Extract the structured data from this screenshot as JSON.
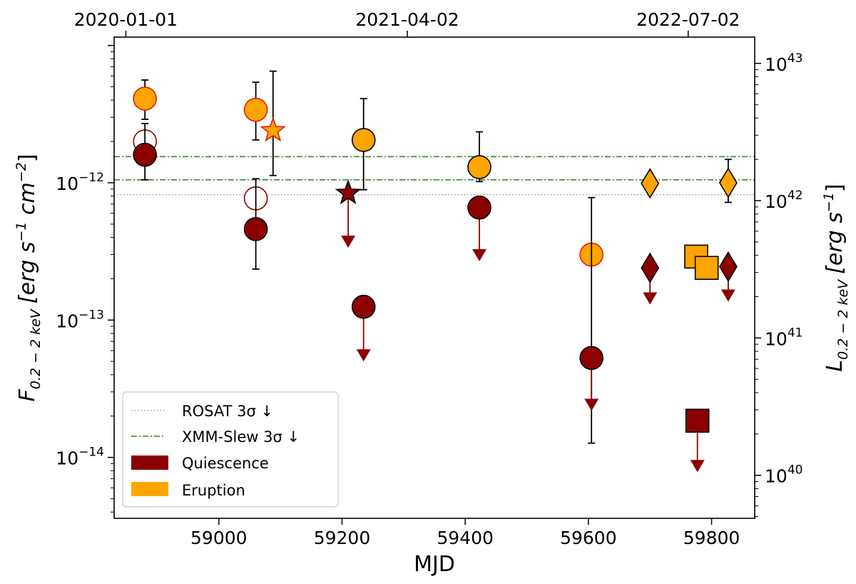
{
  "chart_data": {
    "type": "scatter",
    "xlabel": "MJD",
    "xlim": [
      58830,
      59870
    ],
    "ylim_flux": [
      3.6e-15,
      1.15e-11
    ],
    "ylim_lum": [
      4.86e+39,
      1.553e+43
    ],
    "x_ticks": [
      59000,
      59200,
      59400,
      59600,
      59800
    ],
    "top_ticks": [
      {
        "mjd": 58849,
        "label": "2020-01-01"
      },
      {
        "mjd": 59306,
        "label": "2021-04-02"
      },
      {
        "mjd": 59762,
        "label": "2022-07-02"
      }
    ],
    "y_left_label": {
      "main": "F",
      "sub": "0.2 − 2 keV",
      "units": "[erg s",
      "exp1": "−1",
      "mid": " cm",
      "exp2": "−2",
      "close": "]"
    },
    "y_right_label": {
      "main": "L",
      "sub": "0.2 − 2 keV",
      "units": "[erg s",
      "exp1": "−1",
      "close": "]"
    },
    "y_left_ticks": [
      {
        "value": 1e-12,
        "base": "10",
        "exp": "−12"
      },
      {
        "value": 1e-13,
        "base": "10",
        "exp": "−13"
      },
      {
        "value": 1e-14,
        "base": "10",
        "exp": "−14"
      }
    ],
    "y_right_ticks": [
      {
        "value": 1e+43,
        "base": "10",
        "exp": "43"
      },
      {
        "value": 1e+42,
        "base": "10",
        "exp": "42"
      },
      {
        "value": 1e+41,
        "base": "10",
        "exp": "41"
      },
      {
        "value": 1e+40,
        "base": "10",
        "exp": "40"
      }
    ],
    "hlines": [
      {
        "name": "rosat-limit-line",
        "y": 8.2e-13,
        "style": "dotted",
        "color": "#999999"
      },
      {
        "name": "xmm-slew-limit-line-upper",
        "y": 1.55e-12,
        "style": "dashdot",
        "color": "#2e7d20"
      },
      {
        "name": "xmm-slew-limit-line-lower",
        "y": 1.05e-12,
        "style": "dashdot",
        "color": "#2e7d20"
      }
    ],
    "points": [
      {
        "x": 58880,
        "y": 4.1e-12,
        "marker": "circle",
        "fill": "#FFA500",
        "edge": "#e81a00",
        "err": [
          2.9e-12,
          5.6e-12
        ]
      },
      {
        "x": 58880,
        "y": 2e-12,
        "marker": "circle",
        "fill": "#ffffff",
        "edge": "#8B0000"
      },
      {
        "x": 58880,
        "y": 1.6e-12,
        "marker": "circle",
        "fill": "#8B0000",
        "edge": "#000000",
        "err": [
          1.05e-12,
          2.7e-12
        ]
      },
      {
        "x": 59060,
        "y": 3.4e-12,
        "marker": "circle",
        "fill": "#FFA500",
        "edge": "#e81a00",
        "err": [
          2.05e-12,
          5.4e-12
        ]
      },
      {
        "x": 59060,
        "y": 7.7e-13,
        "marker": "circle",
        "fill": "#ffffff",
        "edge": "#8B0000"
      },
      {
        "x": 59060,
        "y": 4.6e-13,
        "marker": "circle",
        "fill": "#8B0000",
        "edge": "#000000",
        "err": [
          2.35e-13,
          1.07e-12
        ]
      },
      {
        "x": 59088,
        "y": 2.4e-12,
        "marker": "star",
        "fill": "#FFA500",
        "edge": "#e81a00",
        "err": [
          1.13e-12,
          6.5e-12
        ]
      },
      {
        "x": 59210,
        "y": 8.4e-13,
        "marker": "star",
        "fill": "#8B0000",
        "edge": "#000000",
        "ul": true,
        "ul_end": 3.7e-13
      },
      {
        "x": 59235,
        "y": 2.05e-12,
        "marker": "circle",
        "fill": "#FFA500",
        "edge": "#000000",
        "err": [
          8.9e-13,
          4.1e-12
        ]
      },
      {
        "x": 59235,
        "y": 1.25e-13,
        "marker": "circle",
        "fill": "#8B0000",
        "edge": "#000000",
        "ul": true,
        "ul_end": 5.5e-14
      },
      {
        "x": 59423,
        "y": 1.3e-12,
        "marker": "circle",
        "fill": "#FFA500",
        "edge": "#000000",
        "err": [
          1.02e-12,
          2.35e-12
        ]
      },
      {
        "x": 59423,
        "y": 6.6e-13,
        "marker": "circle",
        "fill": "#8B0000",
        "edge": "#000000",
        "ul": true,
        "ul_end": 2.95e-13
      },
      {
        "x": 59605,
        "y": 3e-13,
        "marker": "circle",
        "fill": "#FFA500",
        "edge": "#e81a00"
      },
      {
        "x": 59605,
        "y": 5.3e-14,
        "marker": "circle",
        "fill": "#8B0000",
        "edge": "#000000",
        "ul": true,
        "ul_end": 2.4e-14,
        "err": [
          1.27e-14,
          7.8e-13
        ]
      },
      {
        "x": 59700,
        "y": 9.9e-13,
        "marker": "diamond",
        "fill": "#FFA500",
        "edge": "#000000"
      },
      {
        "x": 59700,
        "y": 2.4e-13,
        "marker": "diamond",
        "fill": "#8B0000",
        "edge": "#000000",
        "ul": true,
        "ul_end": 1.43e-13
      },
      {
        "x": 59827,
        "y": 1e-12,
        "marker": "diamond",
        "fill": "#FFA500",
        "edge": "#000000",
        "err": [
          7.2e-13,
          1.48e-12
        ]
      },
      {
        "x": 59827,
        "y": 2.45e-13,
        "marker": "diamond",
        "fill": "#8B0000",
        "edge": "#000000",
        "ul": true,
        "ul_end": 1.5e-13
      },
      {
        "x": 59775,
        "y": 2.9e-13,
        "marker": "square",
        "fill": "#FFA500",
        "edge": "#000000"
      },
      {
        "x": 59792,
        "y": 2.4e-13,
        "marker": "square",
        "fill": "#FFA500",
        "edge": "#000000"
      },
      {
        "x": 59777,
        "y": 1.85e-14,
        "marker": "square",
        "fill": "#8B0000",
        "edge": "#000000",
        "ul": true,
        "ul_end": 8.6e-15
      }
    ],
    "legend": {
      "position": "lower left",
      "entries": [
        {
          "label": "ROSAT 3σ ↓",
          "kind": "dotted",
          "color": "#999999"
        },
        {
          "label": "XMM-Slew 3σ ↓",
          "kind": "dashdot",
          "color": "#2e7d20"
        },
        {
          "label": "Quiescence",
          "kind": "patch",
          "color": "#8B0000"
        },
        {
          "label": "Eruption",
          "kind": "patch",
          "color": "#FFA500"
        }
      ]
    }
  }
}
